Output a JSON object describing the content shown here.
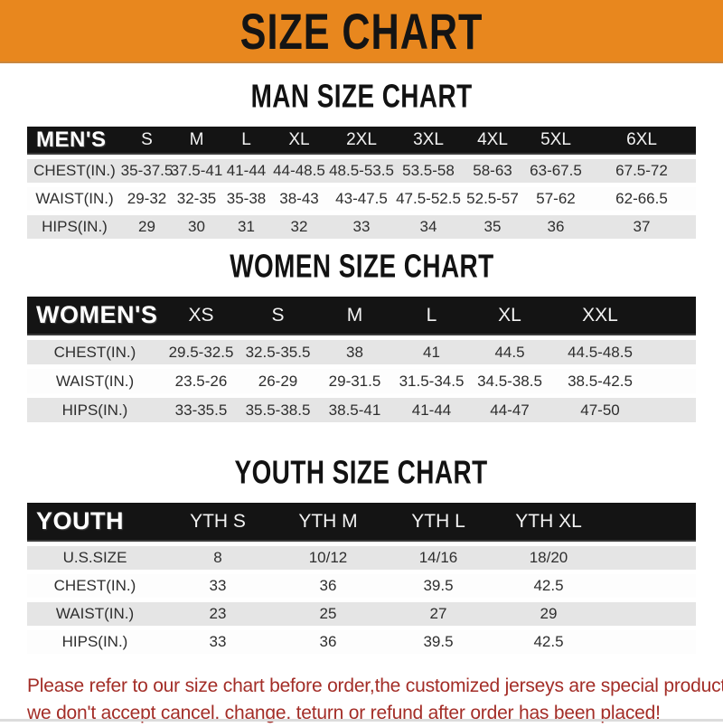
{
  "banner": {
    "title": "SIZE CHART",
    "bg_color": "#E8871E",
    "text_color": "#141414"
  },
  "colors": {
    "header_bar": "#141414",
    "row_gray": "#E5E5E5",
    "row_white": "#FDFDFD",
    "footer_red": "#A32D27"
  },
  "sections": [
    {
      "title": "MAN SIZE CHART",
      "table": {
        "header": [
          "MEN'S",
          "S",
          "M",
          "L",
          "XL",
          "2XL",
          "3XL",
          "4XL",
          "5XL",
          "6XL"
        ],
        "rows": [
          {
            "label": "CHEST(IN.)",
            "values": [
              "35-37.5",
              "37.5-41",
              "41-44",
              "44-48.5",
              "48.5-53.5",
              "53.5-58",
              "58-63",
              "63-67.5",
              "67.5-72"
            ]
          },
          {
            "label": "WAIST(IN.)",
            "values": [
              "29-32",
              "32-35",
              "35-38",
              "38-43",
              "43-47.5",
              "47.5-52.5",
              "52.5-57",
              "57-62",
              "62-66.5"
            ]
          },
          {
            "label": "HIPS(IN.)",
            "values": [
              "29",
              "30",
              "31",
              "32",
              "33",
              "34",
              "35",
              "36",
              "37"
            ]
          }
        ]
      }
    },
    {
      "title": "WOMEN SIZE CHART",
      "table": {
        "header": [
          "WOMEN'S",
          "XS",
          "S",
          "M",
          "L",
          "XL",
          "XXL"
        ],
        "rows": [
          {
            "label": "CHEST(IN.)",
            "values": [
              "29.5-32.5",
              "32.5-35.5",
              "38",
              "41",
              "44.5",
              "44.5-48.5"
            ]
          },
          {
            "label": "WAIST(IN.)",
            "values": [
              "23.5-26",
              "26-29",
              "29-31.5",
              "31.5-34.5",
              "34.5-38.5",
              "38.5-42.5"
            ]
          },
          {
            "label": "HIPS(IN.)",
            "values": [
              "33-35.5",
              "35.5-38.5",
              "38.5-41",
              "41-44",
              "44-47",
              "47-50"
            ]
          }
        ]
      }
    },
    {
      "title": "YOUTH SIZE CHART",
      "table": {
        "header": [
          "YOUTH",
          "YTH S",
          "YTH M",
          "YTH L",
          "YTH XL"
        ],
        "rows": [
          {
            "label": "U.S.SIZE",
            "values": [
              "8",
              "10/12",
              "14/16",
              "18/20"
            ]
          },
          {
            "label": "CHEST(IN.)",
            "values": [
              "33",
              "36",
              "39.5",
              "42.5"
            ]
          },
          {
            "label": "WAIST(IN.)",
            "values": [
              "23",
              "25",
              "27",
              "29"
            ]
          },
          {
            "label": "HIPS(IN.)",
            "values": [
              "33",
              "36",
              "39.5",
              "42.5"
            ]
          }
        ]
      }
    }
  ],
  "footer": {
    "line1": "Please refer to our size chart before order,the customized jerseys are special products,",
    "line2": "we don't accept cancel, change, teturn or refund after order has been placed!"
  }
}
